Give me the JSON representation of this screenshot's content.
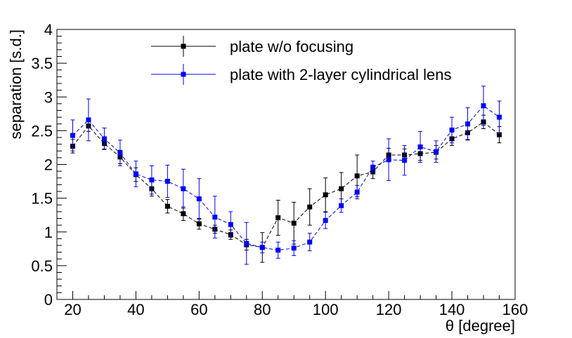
{
  "chart_data": {
    "type": "scatter",
    "title": "",
    "xlabel": "θ [degree]",
    "ylabel": "separation [s.d.]",
    "xlim": [
      15,
      160
    ],
    "ylim": [
      0,
      4
    ],
    "x_ticks": [
      20,
      40,
      60,
      80,
      100,
      120,
      140,
      160
    ],
    "x_tick_labels": [
      "20",
      "40",
      "60",
      "80",
      "100",
      "120",
      "140",
      "160"
    ],
    "y_ticks": [
      0,
      0.5,
      1,
      1.5,
      2,
      2.5,
      3,
      3.5,
      4
    ],
    "y_tick_labels": [
      "0",
      "0.5",
      "1",
      "1.5",
      "2",
      "2.5",
      "3",
      "3.5",
      "4"
    ],
    "legend_position": "top-center",
    "grid": false,
    "series": [
      {
        "name": "plate w/o focusing",
        "color": "#000000",
        "line_style": "dashed",
        "marker": "square",
        "x": [
          20,
          25,
          30,
          35,
          40,
          45,
          50,
          55,
          60,
          65,
          70,
          75,
          80,
          85,
          90,
          95,
          100,
          105,
          110,
          115,
          120,
          125,
          130,
          135,
          140,
          145,
          150,
          155
        ],
        "y": [
          2.27,
          2.57,
          2.31,
          2.11,
          1.85,
          1.64,
          1.38,
          1.27,
          1.12,
          1.04,
          0.96,
          0.81,
          0.77,
          1.21,
          1.13,
          1.37,
          1.55,
          1.64,
          1.83,
          1.89,
          2.14,
          2.14,
          2.16,
          2.18,
          2.38,
          2.47,
          2.63,
          2.44
        ],
        "yerr": [
          0.1,
          0.08,
          0.08,
          0.1,
          0.1,
          0.11,
          0.1,
          0.1,
          0.08,
          0.06,
          0.07,
          0.08,
          0.22,
          0.26,
          0.31,
          0.27,
          0.25,
          0.24,
          0.31,
          0.1,
          0.1,
          0.09,
          0.1,
          0.1,
          0.1,
          0.1,
          0.1,
          0.12
        ]
      },
      {
        "name": "plate with 2-layer cylindrical lens",
        "color": "#0000ff",
        "line_style": "dashed",
        "marker": "square",
        "x": [
          20,
          25,
          30,
          35,
          40,
          45,
          50,
          55,
          60,
          65,
          70,
          75,
          80,
          85,
          90,
          95,
          100,
          105,
          110,
          115,
          120,
          125,
          130,
          135,
          140,
          145,
          150,
          155
        ],
        "y": [
          2.43,
          2.66,
          2.38,
          2.17,
          1.86,
          1.77,
          1.75,
          1.64,
          1.49,
          1.22,
          1.11,
          0.83,
          0.77,
          0.73,
          0.76,
          0.85,
          1.17,
          1.39,
          1.59,
          1.96,
          2.07,
          2.06,
          2.26,
          2.19,
          2.51,
          2.6,
          2.87,
          2.7
        ],
        "yerr": [
          0.23,
          0.31,
          0.16,
          0.19,
          0.19,
          0.21,
          0.24,
          0.29,
          0.3,
          0.31,
          0.19,
          0.31,
          0.08,
          0.12,
          0.11,
          0.13,
          0.12,
          0.1,
          0.1,
          0.09,
          0.31,
          0.22,
          0.23,
          0.16,
          0.19,
          0.24,
          0.29,
          0.24
        ]
      }
    ]
  }
}
